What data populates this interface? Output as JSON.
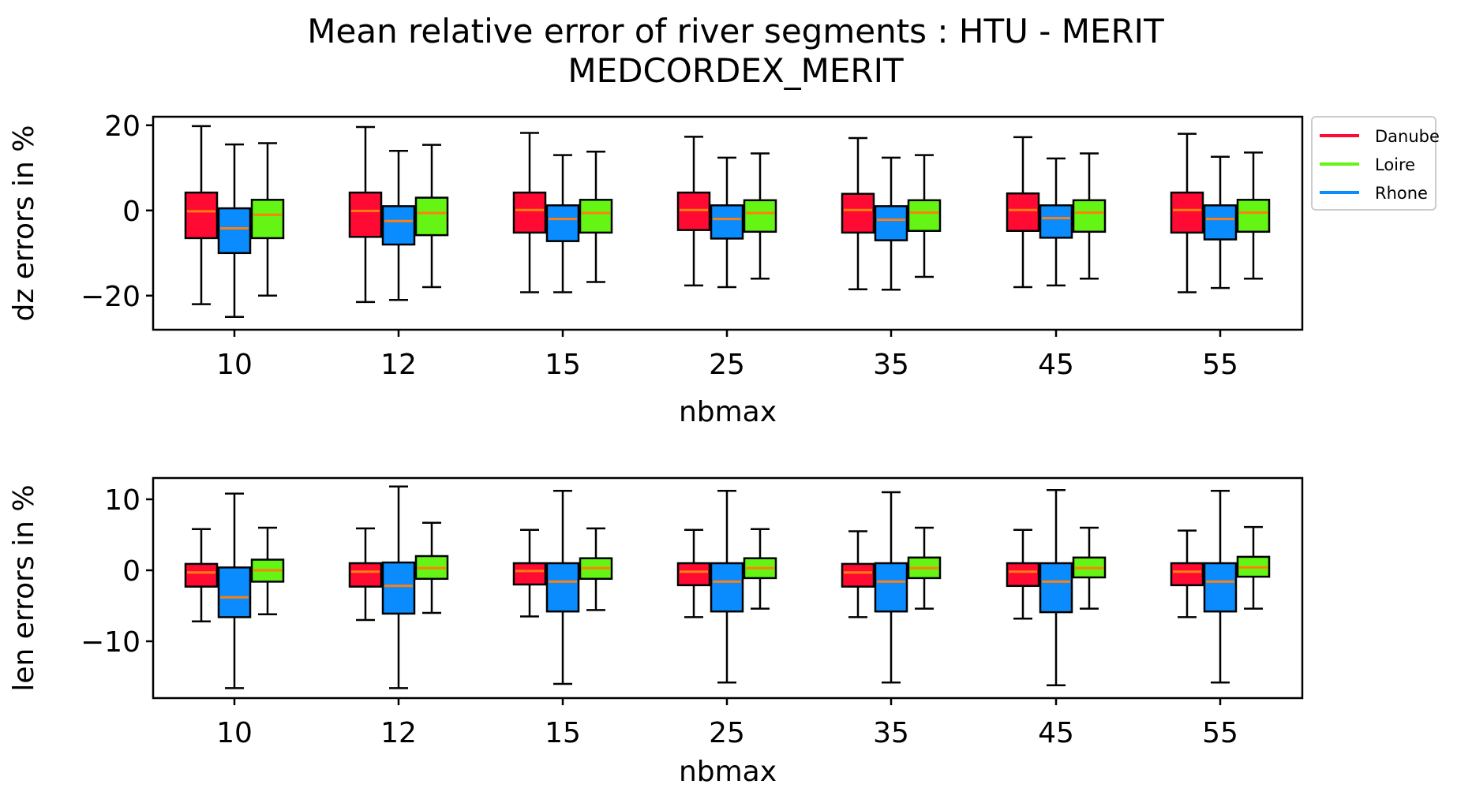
{
  "title_line1": "Mean relative error of river segments : HTU - MERIT",
  "title_line2": "MEDCORDEX_MERIT",
  "legend": [
    {
      "name": "Danube",
      "color": "#ff0a32"
    },
    {
      "name": "Loire",
      "color": "#64f514"
    },
    {
      "name": "Rhone",
      "color": "#0a8cff"
    }
  ],
  "median_color": "#ff7f0e",
  "chart_data": [
    {
      "type": "box",
      "xlabel": "nbmax",
      "ylabel": "dz errors in %",
      "ylim": [
        -28,
        22
      ],
      "yticks": [
        20,
        0,
        -20
      ],
      "ytick_labels": [
        "20",
        "0",
        "−20"
      ],
      "categories": [
        "10",
        "12",
        "15",
        "25",
        "35",
        "45",
        "55"
      ],
      "series": [
        {
          "name": "Danube",
          "boxes": [
            {
              "whislo": -22,
              "q1": -6.5,
              "med": -0.2,
              "q3": 4.2,
              "whishi": 19.8
            },
            {
              "whislo": -21.5,
              "q1": -6.2,
              "med": -0.1,
              "q3": 4.2,
              "whishi": 19.6
            },
            {
              "whislo": -19.2,
              "q1": -5.2,
              "med": 0.1,
              "q3": 4.2,
              "whishi": 18.2
            },
            {
              "whislo": -17.6,
              "q1": -4.6,
              "med": 0.1,
              "q3": 4.2,
              "whishi": 17.3
            },
            {
              "whislo": -18.5,
              "q1": -5.2,
              "med": 0.1,
              "q3": 3.9,
              "whishi": 17.0
            },
            {
              "whislo": -18.0,
              "q1": -4.8,
              "med": 0.1,
              "q3": 4.0,
              "whishi": 17.2
            },
            {
              "whislo": -19.2,
              "q1": -5.2,
              "med": 0.1,
              "q3": 4.2,
              "whishi": 18.0
            }
          ]
        },
        {
          "name": "Rhone",
          "boxes": [
            {
              "whislo": -25.0,
              "q1": -10.0,
              "med": -4.2,
              "q3": 0.5,
              "whishi": 15.5
            },
            {
              "whislo": -21.0,
              "q1": -8.0,
              "med": -2.5,
              "q3": 1.0,
              "whishi": 14.0
            },
            {
              "whislo": -19.2,
              "q1": -7.2,
              "med": -2.0,
              "q3": 1.2,
              "whishi": 13.0
            },
            {
              "whislo": -18.0,
              "q1": -6.6,
              "med": -2.0,
              "q3": 1.2,
              "whishi": 12.4
            },
            {
              "whislo": -18.6,
              "q1": -7.0,
              "med": -2.2,
              "q3": 1.0,
              "whishi": 12.4
            },
            {
              "whislo": -17.6,
              "q1": -6.4,
              "med": -1.8,
              "q3": 1.2,
              "whishi": 12.2
            },
            {
              "whislo": -18.2,
              "q1": -6.8,
              "med": -2.0,
              "q3": 1.2,
              "whishi": 12.6
            }
          ]
        },
        {
          "name": "Loire",
          "boxes": [
            {
              "whislo": -20.0,
              "q1": -6.5,
              "med": -1.0,
              "q3": 2.5,
              "whishi": 15.8
            },
            {
              "whislo": -18.0,
              "q1": -5.8,
              "med": -0.6,
              "q3": 3.0,
              "whishi": 15.4
            },
            {
              "whislo": -16.8,
              "q1": -5.2,
              "med": -0.6,
              "q3": 2.5,
              "whishi": 13.8
            },
            {
              "whislo": -16.0,
              "q1": -5.0,
              "med": -0.6,
              "q3": 2.4,
              "whishi": 13.4
            },
            {
              "whislo": -15.6,
              "q1": -4.8,
              "med": -0.5,
              "q3": 2.4,
              "whishi": 13.0
            },
            {
              "whislo": -16.0,
              "q1": -5.0,
              "med": -0.5,
              "q3": 2.4,
              "whishi": 13.4
            },
            {
              "whislo": -16.0,
              "q1": -5.0,
              "med": -0.5,
              "q3": 2.5,
              "whishi": 13.6
            }
          ]
        }
      ]
    },
    {
      "type": "box",
      "xlabel": "nbmax",
      "ylabel": "len errors in %",
      "ylim": [
        -18,
        13
      ],
      "yticks": [
        10,
        0,
        -10
      ],
      "ytick_labels": [
        "10",
        "0",
        "−10"
      ],
      "categories": [
        "10",
        "12",
        "15",
        "25",
        "35",
        "45",
        "55"
      ],
      "series": [
        {
          "name": "Danube",
          "boxes": [
            {
              "whislo": -7.2,
              "q1": -2.3,
              "med": -0.3,
              "q3": 0.9,
              "whishi": 5.8
            },
            {
              "whislo": -7.0,
              "q1": -2.3,
              "med": -0.2,
              "q3": 1.0,
              "whishi": 5.9
            },
            {
              "whislo": -6.5,
              "q1": -2.0,
              "med": -0.1,
              "q3": 1.0,
              "whishi": 5.7
            },
            {
              "whislo": -6.6,
              "q1": -2.1,
              "med": -0.2,
              "q3": 1.0,
              "whishi": 5.7
            },
            {
              "whislo": -6.6,
              "q1": -2.3,
              "med": -0.3,
              "q3": 0.9,
              "whishi": 5.5
            },
            {
              "whislo": -6.8,
              "q1": -2.2,
              "med": -0.2,
              "q3": 1.0,
              "whishi": 5.7
            },
            {
              "whislo": -6.6,
              "q1": -2.1,
              "med": -0.2,
              "q3": 1.0,
              "whishi": 5.6
            }
          ]
        },
        {
          "name": "Rhone",
          "boxes": [
            {
              "whislo": -16.6,
              "q1": -6.6,
              "med": -3.8,
              "q3": 0.4,
              "whishi": 10.8
            },
            {
              "whislo": -16.6,
              "q1": -6.1,
              "med": -2.2,
              "q3": 1.1,
              "whishi": 11.8
            },
            {
              "whislo": -16.0,
              "q1": -5.8,
              "med": -1.6,
              "q3": 1.0,
              "whishi": 11.2
            },
            {
              "whislo": -15.8,
              "q1": -5.8,
              "med": -1.6,
              "q3": 1.0,
              "whishi": 11.2
            },
            {
              "whislo": -15.8,
              "q1": -5.8,
              "med": -1.6,
              "q3": 1.0,
              "whishi": 11.0
            },
            {
              "whislo": -16.2,
              "q1": -5.9,
              "med": -1.6,
              "q3": 1.0,
              "whishi": 11.3
            },
            {
              "whislo": -15.8,
              "q1": -5.8,
              "med": -1.6,
              "q3": 1.0,
              "whishi": 11.2
            }
          ]
        },
        {
          "name": "Loire",
          "boxes": [
            {
              "whislo": -6.2,
              "q1": -1.6,
              "med": 0.0,
              "q3": 1.5,
              "whishi": 6.0
            },
            {
              "whislo": -6.0,
              "q1": -1.2,
              "med": 0.3,
              "q3": 2.0,
              "whishi": 6.7
            },
            {
              "whislo": -5.6,
              "q1": -1.2,
              "med": 0.3,
              "q3": 1.7,
              "whishi": 5.9
            },
            {
              "whislo": -5.4,
              "q1": -1.1,
              "med": 0.3,
              "q3": 1.7,
              "whishi": 5.8
            },
            {
              "whislo": -5.4,
              "q1": -1.1,
              "med": 0.3,
              "q3": 1.8,
              "whishi": 6.0
            },
            {
              "whislo": -5.4,
              "q1": -1.0,
              "med": 0.3,
              "q3": 1.8,
              "whishi": 6.0
            },
            {
              "whislo": -5.4,
              "q1": -0.9,
              "med": 0.4,
              "q3": 1.9,
              "whishi": 6.1
            }
          ]
        }
      ]
    }
  ]
}
